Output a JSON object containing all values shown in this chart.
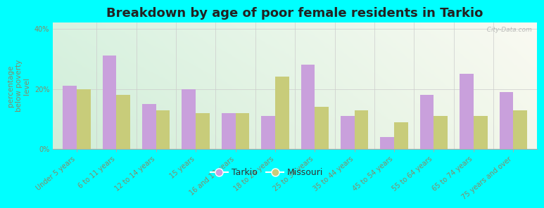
{
  "title": "Breakdown by age of poor female residents in Tarkio",
  "ylabel": "percentage\nbelow poverty\nlevel",
  "categories": [
    "Under 5 years",
    "6 to 11 years",
    "12 to 14 years",
    "15 years",
    "16 and 17 years",
    "18 to 24 years",
    "25 to 34 years",
    "35 to 44 years",
    "45 to 54 years",
    "55 to 64 years",
    "65 to 74 years",
    "75 years and over"
  ],
  "tarkio_values": [
    21,
    31,
    15,
    20,
    12,
    11,
    28,
    11,
    4,
    18,
    25,
    19
  ],
  "missouri_values": [
    20,
    18,
    13,
    12,
    12,
    24,
    14,
    13,
    9,
    11,
    11,
    13
  ],
  "tarkio_color": "#c9a0dc",
  "missouri_color": "#c8cc7a",
  "background_color": "#00ffff",
  "ylim": [
    0,
    42
  ],
  "ytick_labels": [
    "0%",
    "20%",
    "40%"
  ],
  "ytick_values": [
    0,
    20,
    40
  ],
  "bar_width": 0.35,
  "title_fontsize": 13,
  "axis_label_fontsize": 7.5,
  "tick_fontsize": 7,
  "legend_labels": [
    "Tarkio",
    "Missouri"
  ],
  "watermark": "  City-Data.com",
  "tick_color": "#888866",
  "ylabel_color": "#888866"
}
